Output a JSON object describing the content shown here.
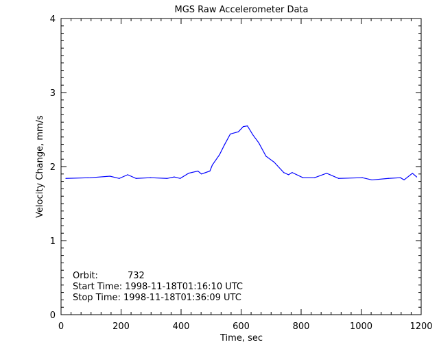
{
  "chart_data": {
    "type": "line",
    "title": "MGS Raw Accelerometer Data",
    "xlabel": "Time, sec",
    "ylabel": "Velocity Change, mm/s",
    "xlim": [
      0,
      1200
    ],
    "ylim": [
      0,
      4
    ],
    "x_ticks": [
      "0",
      "200",
      "400",
      "600",
      "800",
      "1000",
      "1200"
    ],
    "y_ticks": [
      "0",
      "1",
      "2",
      "3",
      "4"
    ],
    "grid": false,
    "line_color": "#0000ff",
    "series": [
      {
        "x": [
          16,
          99,
          163,
          194,
          222,
          250,
          298,
          353,
          377,
          397,
          425,
          456,
          468,
          496,
          504,
          528,
          544,
          564,
          591,
          607,
          621,
          639,
          659,
          683,
          710,
          742,
          758,
          770,
          806,
          845,
          885,
          925,
          1004,
          1036,
          1091,
          1131,
          1143,
          1171,
          1185
        ],
        "y": [
          1.84,
          1.85,
          1.87,
          1.84,
          1.89,
          1.84,
          1.85,
          1.84,
          1.86,
          1.84,
          1.91,
          1.94,
          1.9,
          1.94,
          2.02,
          2.16,
          2.29,
          2.44,
          2.47,
          2.54,
          2.55,
          2.43,
          2.32,
          2.14,
          2.06,
          1.92,
          1.89,
          1.92,
          1.85,
          1.85,
          1.91,
          1.84,
          1.85,
          1.82,
          1.84,
          1.85,
          1.82,
          1.91,
          1.86
        ]
      }
    ],
    "annotations": {
      "orbit_label": "Orbit:",
      "orbit_value": "732",
      "start_time": "Start Time: 1998-11-18T01:16:10 UTC",
      "stop_time": "Stop Time: 1998-11-18T01:36:09 UTC"
    }
  }
}
